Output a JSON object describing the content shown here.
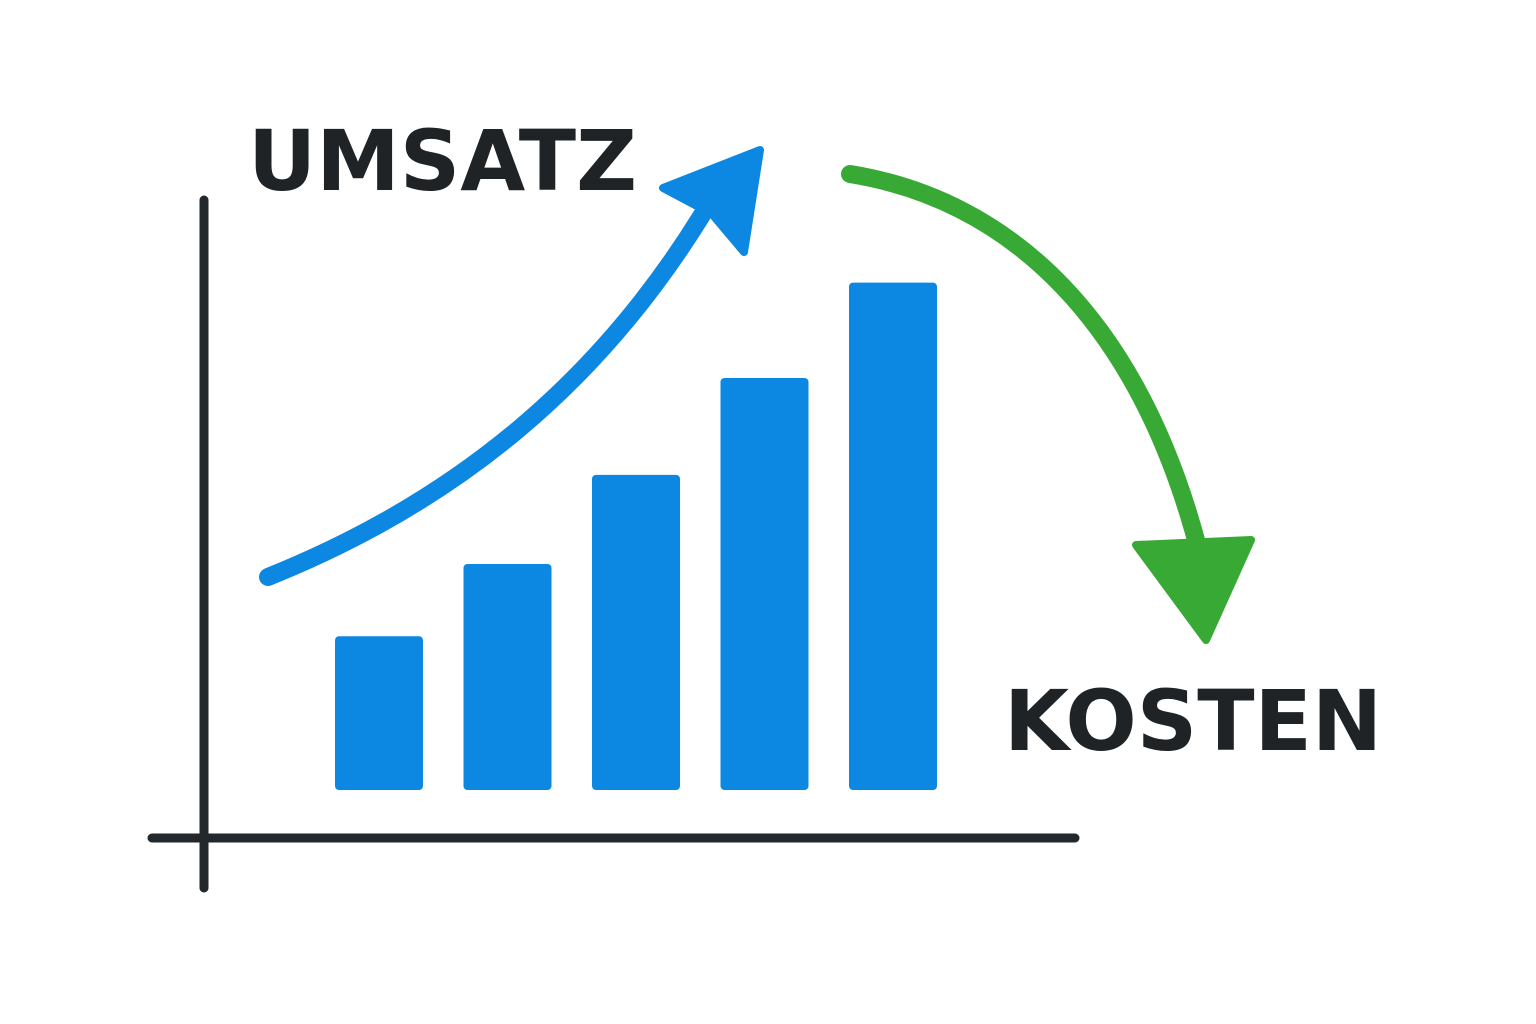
{
  "chart_data": {
    "type": "bar",
    "values": [
      10,
      14.7,
      20.5,
      26.8,
      33.0
    ],
    "ylim": [
      0,
      40
    ],
    "bar_color": "#0d88e2",
    "axis_color": "#23282c",
    "annotations": {
      "revenue": {
        "text": "UMSATZ",
        "direction": "up",
        "arrow_color": "#0d88e2"
      },
      "costs": {
        "text": "KOSTEN",
        "direction": "down",
        "arrow_color": "#37a934"
      }
    },
    "grid": false,
    "legend": "none"
  }
}
